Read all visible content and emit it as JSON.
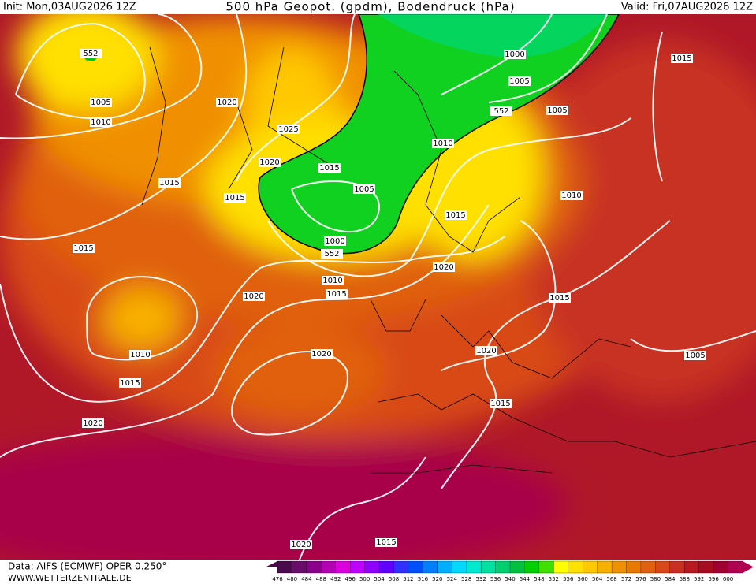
{
  "header": {
    "init": "Init: Mon,03AUG2026 12Z",
    "title": "500 hPa Geopot. (gpdm), Bodendruck (hPa)",
    "valid": "Valid: Fri,07AUG2026 12Z"
  },
  "footer": {
    "source": "Data: AIFS (ECMWF) OPER 0.250°",
    "website": "WWW.WETTERZENTRALE.DE"
  },
  "colorbar": {
    "labels": [
      476,
      480,
      484,
      488,
      492,
      496,
      500,
      504,
      508,
      512,
      516,
      520,
      524,
      528,
      532,
      536,
      540,
      544,
      548,
      552,
      556,
      560,
      564,
      568,
      572,
      576,
      580,
      584,
      588,
      592,
      596,
      600
    ],
    "colors": [
      "#4b0a4b",
      "#6a0d6a",
      "#8a008a",
      "#b400b4",
      "#dc00dc",
      "#c000ff",
      "#9000ff",
      "#6000ff",
      "#3030ff",
      "#0050ff",
      "#0080ff",
      "#00b0ff",
      "#00d8ff",
      "#00e8d0",
      "#00e0a0",
      "#00d070",
      "#00c040",
      "#00d000",
      "#40e000",
      "#ffff00",
      "#ffe000",
      "#ffc800",
      "#f8b000",
      "#f09000",
      "#e87800",
      "#e06010",
      "#d84818",
      "#c83020",
      "#b81820",
      "#a80c20",
      "#a00030",
      "#b00050"
    ]
  },
  "contour_labels": [
    "1005",
    "1010",
    "552",
    "1020",
    "1025",
    "1020",
    "1015",
    "1015",
    "1015",
    "1005",
    "1000",
    "552",
    "1000",
    "1005",
    "552",
    "1005",
    "1015",
    "1010",
    "1010",
    "1015",
    "1015",
    "1020",
    "1010",
    "1015",
    "1020",
    "1015",
    "1010",
    "1020",
    "1020",
    "1005",
    "1015",
    "1015",
    "1020",
    "1020",
    "1015"
  ]
}
